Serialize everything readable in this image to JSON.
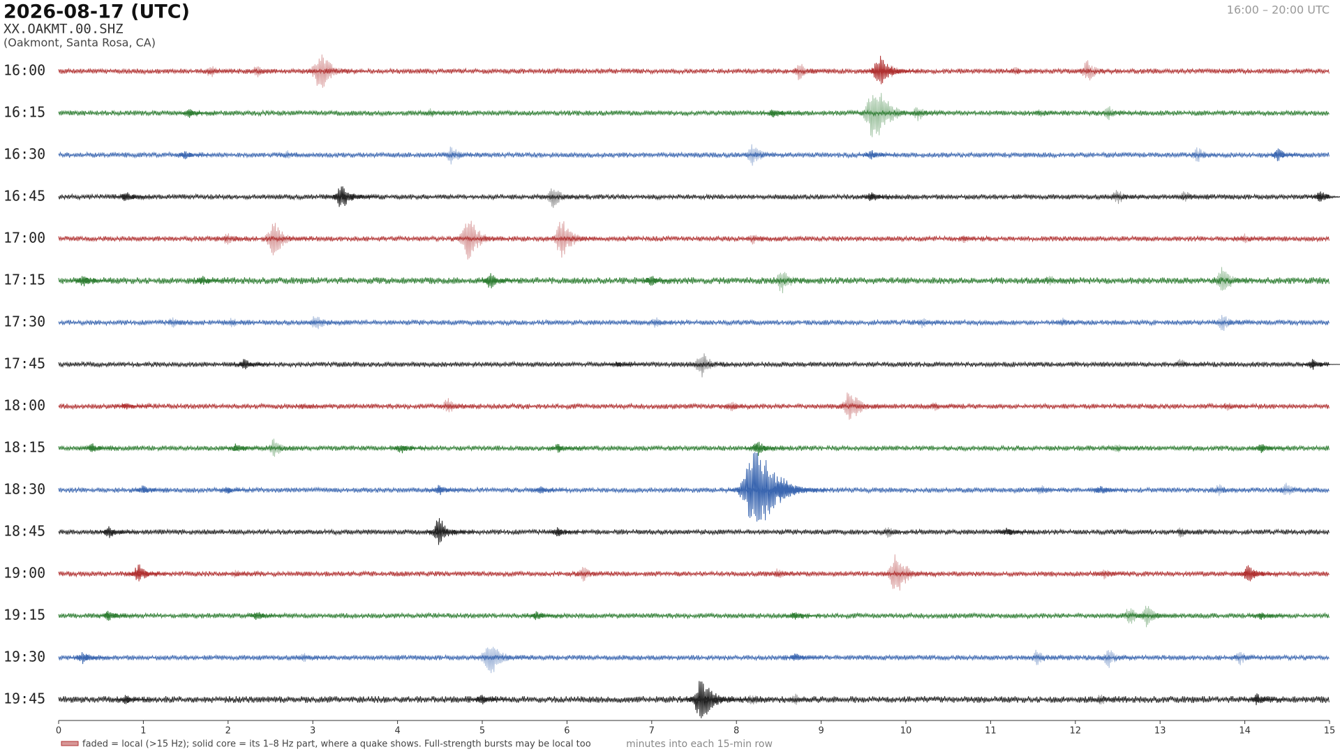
{
  "header": {
    "title": "2026-08-17  (UTC)",
    "station": "XX.OAKMT.00.SHZ",
    "location": "(Oakmont, Santa Rosa, CA)",
    "range": "16:00 – 20:00 UTC"
  },
  "chart_data": {
    "type": "helicorder",
    "xlabel": "minutes into each 15-min row",
    "legend": "faded = local (>15 Hz); solid core = its 1–8 Hz part, where a quake shows. Full-strength bursts may be local too",
    "xlim": [
      0,
      15
    ],
    "xticks": [
      0,
      1,
      2,
      3,
      4,
      5,
      6,
      7,
      8,
      9,
      10,
      11,
      12,
      13,
      14,
      15
    ],
    "rows": [
      {
        "label": "16:00",
        "color": "#b03030",
        "noise": 3,
        "bursts": [
          {
            "x": 1.8,
            "amp": 9,
            "faded": true
          },
          {
            "x": 2.35,
            "amp": 8,
            "faded": true
          },
          {
            "x": 3.1,
            "amp": 25,
            "faded": true
          },
          {
            "x": 8.75,
            "amp": 12,
            "faded": true
          },
          {
            "x": 9.7,
            "amp": 20,
            "faded": false
          },
          {
            "x": 9.85,
            "amp": 8,
            "faded": true
          },
          {
            "x": 11.3,
            "amp": 6,
            "faded": true
          },
          {
            "x": 12.15,
            "amp": 14,
            "faded": true
          }
        ]
      },
      {
        "label": "16:15",
        "color": "#2e7d32",
        "noise": 3,
        "bursts": [
          {
            "x": 1.55,
            "amp": 6,
            "faded": false
          },
          {
            "x": 4.4,
            "amp": 6,
            "faded": true
          },
          {
            "x": 8.45,
            "amp": 7,
            "faded": false
          },
          {
            "x": 9.65,
            "amp": 38,
            "faded": true
          },
          {
            "x": 10.15,
            "amp": 10,
            "faded": true
          },
          {
            "x": 11.6,
            "amp": 6,
            "faded": true
          },
          {
            "x": 12.4,
            "amp": 9,
            "faded": true
          }
        ]
      },
      {
        "label": "16:30",
        "color": "#3a66b0",
        "noise": 3,
        "bursts": [
          {
            "x": 1.5,
            "amp": 6,
            "faded": false
          },
          {
            "x": 2.7,
            "amp": 6,
            "faded": true
          },
          {
            "x": 4.65,
            "amp": 12,
            "faded": true
          },
          {
            "x": 8.2,
            "amp": 14,
            "faded": true
          },
          {
            "x": 9.6,
            "amp": 6,
            "faded": false
          },
          {
            "x": 13.45,
            "amp": 10,
            "faded": true
          },
          {
            "x": 14.4,
            "amp": 8,
            "faded": false
          }
        ]
      },
      {
        "label": "16:45",
        "color": "#222222",
        "noise": 3,
        "bursts": [
          {
            "x": 0.8,
            "amp": 7,
            "faded": false
          },
          {
            "x": 3.35,
            "amp": 16,
            "faded": false
          },
          {
            "x": 5.85,
            "amp": 14,
            "faded": true
          },
          {
            "x": 9.6,
            "amp": 7,
            "faded": false
          },
          {
            "x": 12.5,
            "amp": 10,
            "faded": true
          },
          {
            "x": 13.3,
            "amp": 8,
            "faded": true
          },
          {
            "x": 14.9,
            "amp": 8,
            "faded": false
          }
        ]
      },
      {
        "label": "17:00",
        "color": "#b03030",
        "noise": 3,
        "bursts": [
          {
            "x": 2.0,
            "amp": 9,
            "faded": true
          },
          {
            "x": 2.55,
            "amp": 22,
            "faded": true
          },
          {
            "x": 4.85,
            "amp": 26,
            "faded": true
          },
          {
            "x": 5.95,
            "amp": 24,
            "faded": true
          },
          {
            "x": 8.2,
            "amp": 7,
            "faded": true
          },
          {
            "x": 10.7,
            "amp": 6,
            "faded": true
          },
          {
            "x": 14.0,
            "amp": 7,
            "faded": true
          }
        ]
      },
      {
        "label": "17:15",
        "color": "#2e7d32",
        "noise": 4,
        "bursts": [
          {
            "x": 0.3,
            "amp": 8,
            "faded": false
          },
          {
            "x": 1.7,
            "amp": 6,
            "faded": false
          },
          {
            "x": 5.1,
            "amp": 10,
            "faded": false
          },
          {
            "x": 7.0,
            "amp": 7,
            "faded": false
          },
          {
            "x": 8.55,
            "amp": 16,
            "faded": true
          },
          {
            "x": 11.7,
            "amp": 8,
            "faded": true
          },
          {
            "x": 13.75,
            "amp": 18,
            "faded": true
          }
        ]
      },
      {
        "label": "17:30",
        "color": "#3a66b0",
        "noise": 3,
        "bursts": [
          {
            "x": 1.35,
            "amp": 7,
            "faded": true
          },
          {
            "x": 2.05,
            "amp": 7,
            "faded": true
          },
          {
            "x": 3.05,
            "amp": 12,
            "faded": true
          },
          {
            "x": 7.05,
            "amp": 8,
            "faded": true
          },
          {
            "x": 10.2,
            "amp": 7,
            "faded": true
          },
          {
            "x": 11.85,
            "amp": 6,
            "faded": true
          },
          {
            "x": 13.75,
            "amp": 11,
            "faded": true
          }
        ]
      },
      {
        "label": "17:45",
        "color": "#222222",
        "noise": 3,
        "bursts": [
          {
            "x": 2.2,
            "amp": 7,
            "faded": false
          },
          {
            "x": 6.6,
            "amp": 4,
            "faded": false
          },
          {
            "x": 7.6,
            "amp": 16,
            "faded": true
          },
          {
            "x": 13.25,
            "amp": 7,
            "faded": true
          },
          {
            "x": 14.8,
            "amp": 7,
            "faded": false
          }
        ]
      },
      {
        "label": "18:00",
        "color": "#b03030",
        "noise": 3,
        "bursts": [
          {
            "x": 0.8,
            "amp": 4,
            "faded": false
          },
          {
            "x": 2.9,
            "amp": 5,
            "faded": true
          },
          {
            "x": 4.6,
            "amp": 10,
            "faded": true
          },
          {
            "x": 7.95,
            "amp": 8,
            "faded": true
          },
          {
            "x": 9.35,
            "amp": 22,
            "faded": true
          },
          {
            "x": 10.35,
            "amp": 6,
            "faded": true
          },
          {
            "x": 13.8,
            "amp": 6,
            "faded": true
          }
        ]
      },
      {
        "label": "18:15",
        "color": "#2e7d32",
        "noise": 3,
        "bursts": [
          {
            "x": 0.4,
            "amp": 6,
            "faded": false
          },
          {
            "x": 2.1,
            "amp": 6,
            "faded": false
          },
          {
            "x": 2.55,
            "amp": 12,
            "faded": true
          },
          {
            "x": 4.05,
            "amp": 7,
            "faded": false
          },
          {
            "x": 5.9,
            "amp": 6,
            "faded": false
          },
          {
            "x": 8.25,
            "amp": 10,
            "faded": false
          },
          {
            "x": 12.5,
            "amp": 6,
            "faded": true
          },
          {
            "x": 14.2,
            "amp": 6,
            "faded": false
          }
        ]
      },
      {
        "label": "18:30",
        "color": "#3a66b0",
        "noise": 3,
        "bursts": [
          {
            "x": 1.0,
            "amp": 6,
            "faded": false
          },
          {
            "x": 2.0,
            "amp": 5,
            "faded": false
          },
          {
            "x": 4.5,
            "amp": 7,
            "faded": false
          },
          {
            "x": 5.7,
            "amp": 5,
            "faded": false
          },
          {
            "x": 8.25,
            "amp": 60,
            "faded": false
          },
          {
            "x": 8.55,
            "amp": 18,
            "faded": false
          },
          {
            "x": 11.6,
            "amp": 8,
            "faded": true
          },
          {
            "x": 12.3,
            "amp": 7,
            "faded": false
          },
          {
            "x": 13.7,
            "amp": 9,
            "faded": true
          },
          {
            "x": 14.5,
            "amp": 9,
            "faded": true
          }
        ]
      },
      {
        "label": "18:45",
        "color": "#222222",
        "noise": 3,
        "bursts": [
          {
            "x": 0.6,
            "amp": 8,
            "faded": false
          },
          {
            "x": 4.5,
            "amp": 18,
            "faded": false
          },
          {
            "x": 5.9,
            "amp": 6,
            "faded": false
          },
          {
            "x": 9.8,
            "amp": 8,
            "faded": true
          },
          {
            "x": 11.2,
            "amp": 6,
            "faded": false
          },
          {
            "x": 13.25,
            "amp": 7,
            "faded": true
          }
        ]
      },
      {
        "label": "19:00",
        "color": "#b03030",
        "noise": 3,
        "bursts": [
          {
            "x": 0.95,
            "amp": 12,
            "faded": false
          },
          {
            "x": 2.1,
            "amp": 6,
            "faded": true
          },
          {
            "x": 6.2,
            "amp": 10,
            "faded": true
          },
          {
            "x": 8.5,
            "amp": 8,
            "faded": true
          },
          {
            "x": 9.9,
            "amp": 26,
            "faded": true
          },
          {
            "x": 12.35,
            "amp": 7,
            "faded": true
          },
          {
            "x": 14.05,
            "amp": 12,
            "faded": false
          }
        ]
      },
      {
        "label": "19:15",
        "color": "#2e7d32",
        "noise": 3,
        "bursts": [
          {
            "x": 0.6,
            "amp": 7,
            "faded": false
          },
          {
            "x": 2.35,
            "amp": 6,
            "faded": false
          },
          {
            "x": 5.65,
            "amp": 6,
            "faded": false
          },
          {
            "x": 8.7,
            "amp": 6,
            "faded": false
          },
          {
            "x": 12.65,
            "amp": 12,
            "faded": true
          },
          {
            "x": 12.85,
            "amp": 14,
            "faded": true
          },
          {
            "x": 14.2,
            "amp": 6,
            "faded": false
          }
        ]
      },
      {
        "label": "19:30",
        "color": "#3a66b0",
        "noise": 3,
        "bursts": [
          {
            "x": 0.3,
            "amp": 8,
            "faded": false
          },
          {
            "x": 2.9,
            "amp": 6,
            "faded": true
          },
          {
            "x": 5.1,
            "amp": 24,
            "faded": true
          },
          {
            "x": 8.7,
            "amp": 6,
            "faded": false
          },
          {
            "x": 11.55,
            "amp": 10,
            "faded": true
          },
          {
            "x": 12.4,
            "amp": 12,
            "faded": true
          },
          {
            "x": 13.95,
            "amp": 9,
            "faded": true
          }
        ]
      },
      {
        "label": "19:45",
        "color": "#222222",
        "noise": 4,
        "bursts": [
          {
            "x": 0.8,
            "amp": 6,
            "faded": false
          },
          {
            "x": 5.0,
            "amp": 7,
            "faded": false
          },
          {
            "x": 7.6,
            "amp": 28,
            "faded": false
          },
          {
            "x": 8.2,
            "amp": 8,
            "faded": true
          },
          {
            "x": 8.7,
            "amp": 7,
            "faded": true
          },
          {
            "x": 12.3,
            "amp": 8,
            "faded": true
          },
          {
            "x": 14.15,
            "amp": 8,
            "faded": false
          }
        ]
      }
    ]
  }
}
